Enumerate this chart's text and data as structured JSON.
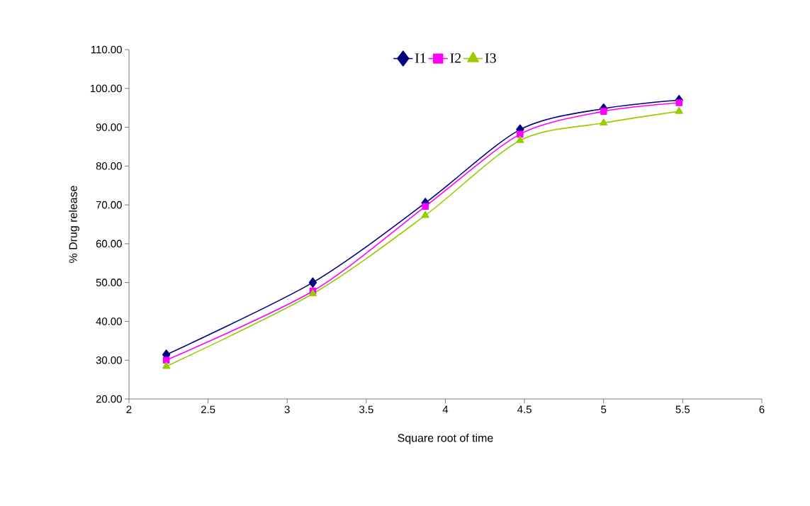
{
  "chart_data": {
    "type": "line",
    "xlabel": "Square root of time",
    "ylabel": "% Drug release",
    "x": [
      2.236,
      3.162,
      3.873,
      4.472,
      5.0,
      5.477
    ],
    "series": [
      {
        "name": "I1",
        "color": "#000080",
        "marker": "diamond",
        "values": [
          31.4,
          50.0,
          70.5,
          89.4,
          94.8,
          97.0
        ]
      },
      {
        "name": "I2",
        "color": "#ff00ff",
        "marker": "square",
        "values": [
          30.0,
          47.8,
          69.6,
          88.2,
          94.1,
          96.3
        ]
      },
      {
        "name": "I3",
        "color": "#99cc00",
        "marker": "triangle",
        "values": [
          28.4,
          47.1,
          67.3,
          86.6,
          91.1,
          94.1
        ]
      }
    ],
    "xlim": [
      2,
      6
    ],
    "xticks": [
      2,
      2.5,
      3,
      3.5,
      4,
      4.5,
      5,
      5.5,
      6
    ],
    "ylim": [
      20,
      110
    ],
    "yticks": [
      {
        "value": 20,
        "label": "20.00"
      },
      {
        "value": 30,
        "label": "30.00"
      },
      {
        "value": 40,
        "label": "40.00"
      },
      {
        "value": 50,
        "label": "50.00"
      },
      {
        "value": 60,
        "label": "60.00"
      },
      {
        "value": 70,
        "label": "70.00"
      },
      {
        "value": 80,
        "label": "80.00"
      },
      {
        "value": 90,
        "label": "90.00"
      },
      {
        "value": 100,
        "label": "100.00"
      },
      {
        "value": 110,
        "label": "110.00"
      }
    ],
    "legend": "top",
    "grid": false,
    "line_style": "solid"
  }
}
